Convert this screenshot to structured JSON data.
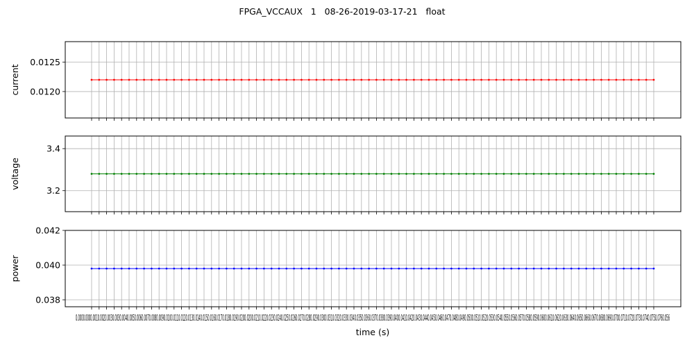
{
  "title": "FPGA_VCCAUX   1   08-26-2019-03-17-21   float",
  "xlabel": "time (s)",
  "x_tick_labels_text": "0.0000.0000.0010.0020.0030.0030.0040.0050.0060.0070.0080.0090.0100.0110.0120.0130.0140.0150.0160.0170.0180.0190.0200.0200.0210.0220.0230.0240.0250.0260.0270.0280.0290.0300.0310.0320.0330.0340.0350.0360.0370.0380.0390.0400.0410.0420.0430.0440.0450.0460.0470.0480.0490.0500.0510.0520.0530.0540.0550.0560.0570.0580.0590.0600.0610.0620.0630.0640.0650.0660.0670.0680.0690.0700.0710.0720.0730.0740.0750.0760.056",
  "chart_data": [
    {
      "type": "line",
      "ylabel": "current",
      "color": "#ff0000",
      "ylim": [
        0.01155,
        0.01285
      ],
      "yticks": [
        0.012,
        0.0125
      ],
      "ytick_labels": [
        "0.0120",
        "0.0125"
      ],
      "grid": true,
      "y_constant": 0.0122
    },
    {
      "type": "line",
      "ylabel": "voltage",
      "color": "#008000",
      "ylim": [
        3.1,
        3.46
      ],
      "yticks": [
        3.2,
        3.4
      ],
      "ytick_labels": [
        "3.2",
        "3.4"
      ],
      "grid": true,
      "y_constant": 3.28
    },
    {
      "type": "line",
      "ylabel": "power",
      "color": "#0000ff",
      "ylim": [
        0.0376,
        0.042
      ],
      "yticks": [
        0.038,
        0.04,
        0.042
      ],
      "ytick_labels": [
        "0.038",
        "0.040",
        "0.042"
      ],
      "grid": true,
      "y_constant": 0.0398
    }
  ]
}
